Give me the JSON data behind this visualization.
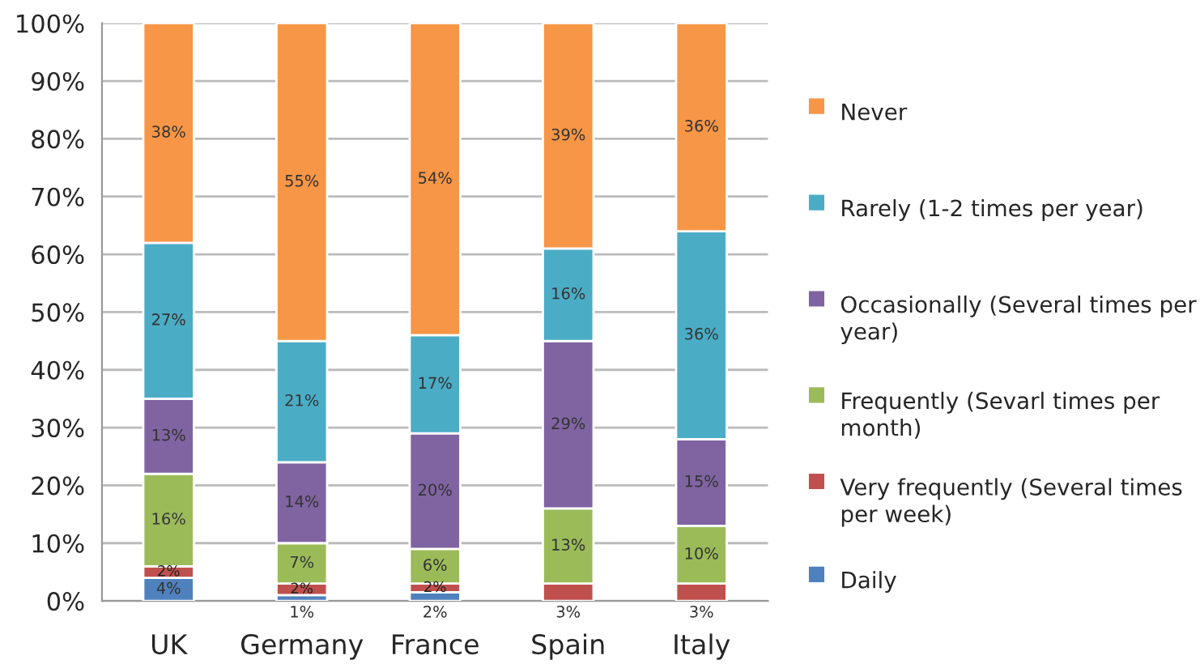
{
  "chart_data": {
    "type": "bar",
    "stacked": true,
    "categories": [
      "UK",
      "Germany",
      "France",
      "Spain",
      "Italy"
    ],
    "series": [
      {
        "name": "Daily",
        "color": "#4f81bd",
        "values": [
          4,
          1,
          1.5,
          0,
          0
        ],
        "value_labels": [
          "4%",
          "1%",
          "2%",
          null,
          null
        ]
      },
      {
        "name": "Very frequently (Several times per week)",
        "color": "#c0504d",
        "values": [
          2,
          2,
          1.5,
          3,
          3
        ],
        "value_labels": [
          "2%",
          "2%",
          "2%",
          "3%",
          "3%"
        ]
      },
      {
        "name": "Frequently (Sevarl times per month)",
        "color": "#9bbb59",
        "values": [
          16,
          7,
          6,
          13,
          10
        ],
        "value_labels": [
          "16%",
          "7%",
          "6%",
          "13%",
          "10%"
        ]
      },
      {
        "name": "Occasionally (Several times per year)",
        "color": "#8064a2",
        "values": [
          13,
          14,
          20,
          29,
          15
        ],
        "value_labels": [
          "13%",
          "14%",
          "20%",
          "29%",
          "15%"
        ]
      },
      {
        "name": "Rarely (1-2 times per year)",
        "color": "#4bacc6",
        "values": [
          27,
          21,
          17,
          16,
          36
        ],
        "value_labels": [
          "27%",
          "21%",
          "17%",
          "16%",
          "36%"
        ]
      },
      {
        "name": "Never",
        "color": "#f79646",
        "values": [
          38,
          55,
          54,
          39,
          36
        ],
        "value_labels": [
          "38%",
          "55%",
          "54%",
          "39%",
          "36%"
        ]
      }
    ],
    "ylim": [
      0,
      100
    ],
    "yticks": [
      {
        "value": 0,
        "label": "0%"
      },
      {
        "value": 10,
        "label": "10%"
      },
      {
        "value": 20,
        "label": "20%"
      },
      {
        "value": 30,
        "label": "30%"
      },
      {
        "value": 40,
        "label": "40%"
      },
      {
        "value": 50,
        "label": "50%"
      },
      {
        "value": 60,
        "label": "60%"
      },
      {
        "value": 70,
        "label": "70%"
      },
      {
        "value": 80,
        "label": "80%"
      },
      {
        "value": 90,
        "label": "90%"
      },
      {
        "value": 100,
        "label": "100%"
      }
    ],
    "grid": "y",
    "legend": "right"
  }
}
